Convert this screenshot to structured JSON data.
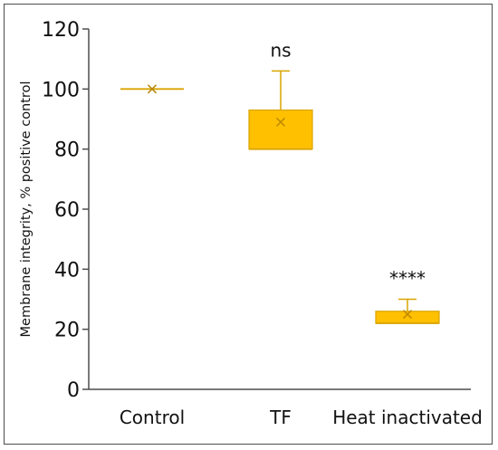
{
  "chart_data": {
    "type": "box",
    "xlabel": "",
    "ylabel": "Membrane integrity, % positive control",
    "ylim": [
      0,
      120
    ],
    "yticks": [
      0,
      20,
      40,
      60,
      80,
      100,
      120
    ],
    "categories": [
      "Control",
      "TF",
      "Heat inactivated"
    ],
    "boxes": [
      {
        "category": "Control",
        "min": 100,
        "q1": 100,
        "median": 100,
        "q3": 100,
        "max": 100,
        "mean": 100,
        "annotation": ""
      },
      {
        "category": "TF",
        "min": 80,
        "q1": 80,
        "median": 80,
        "q3": 93,
        "max": 106,
        "mean": 89,
        "annotation": "ns"
      },
      {
        "category": "Heat inactivated",
        "min": 22,
        "q1": 22,
        "median": 22,
        "q3": 26,
        "max": 30,
        "mean": 25,
        "annotation": "****"
      }
    ],
    "grid": false,
    "colors": {
      "box_fill": "#FFC000",
      "box_stroke": "#D9A400",
      "axis": "#4d4d4d"
    }
  }
}
